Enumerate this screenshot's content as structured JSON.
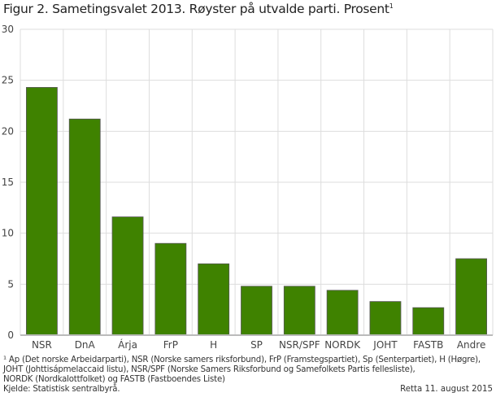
{
  "chart_data": {
    "type": "bar",
    "title": "Figur 2. Sametingsvalet 2013. Røyster på utvalde parti. Prosent",
    "title_footnote_mark": "1",
    "categories": [
      "NSR",
      "DnA",
      "Árja",
      "FrP",
      "H",
      "SP",
      "NSR/SPF",
      "NORDK",
      "JOHT",
      "FASTB",
      "Andre"
    ],
    "values": [
      24.3,
      21.2,
      11.6,
      9.0,
      7.0,
      4.8,
      4.8,
      4.4,
      3.3,
      2.7,
      7.5
    ],
    "ylim": [
      0,
      30
    ],
    "yticks": [
      0,
      5,
      10,
      15,
      20,
      25,
      30
    ],
    "xlabel": "",
    "ylabel": "",
    "grid": true,
    "bar_color": "#3f8200"
  },
  "footnotes": [
    "¹ Ap (Det norske Arbeidarparti), NSR (Norske samers riksforbund), FrP (Framstegspartiet), Sp (Senterpartiet), H (Høgre),",
    " JOHT (Johttisápmelaccaid listu), NSR/SPF (Norske Samers Riksforbund og Samefolkets Partis fellesliste),",
    "NORDK (Nordkalottfolket) og FASTB (Fastboendes Liste)",
    "Kjelde: Statistisk sentralbyrå."
  ],
  "updated": "Retta 11. august 2015"
}
